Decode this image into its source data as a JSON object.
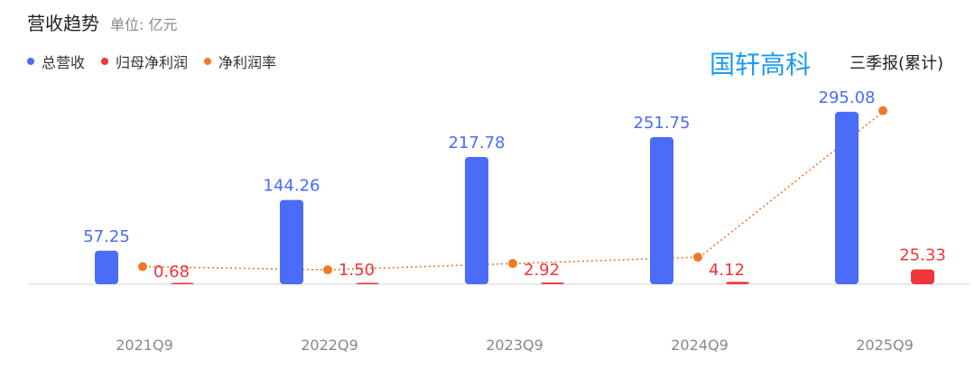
{
  "title": "营收趋势",
  "unit": "单位: 亿元",
  "company": "国轩高科",
  "report_type": "三季报(累计)",
  "colors": {
    "revenue": "#4a6cf7",
    "net_profit": "#f0353b",
    "margin": "#f07a28",
    "axis": "#d6d6d6"
  },
  "chart_data": {
    "type": "bar",
    "categories": [
      "2021Q9",
      "2022Q9",
      "2023Q9",
      "2024Q9",
      "2025Q9"
    ],
    "series": [
      {
        "name": "总营收",
        "values": [
          57.25,
          144.26,
          217.78,
          251.75,
          295.08
        ]
      },
      {
        "name": "归母净利润",
        "values": [
          0.68,
          1.5,
          2.92,
          4.12,
          25.33
        ]
      },
      {
        "name": "净利润率",
        "type": "line",
        "values": [
          1.19,
          1.04,
          1.34,
          1.64,
          8.58
        ]
      }
    ],
    "legend_position": "top-left",
    "grid": false
  }
}
